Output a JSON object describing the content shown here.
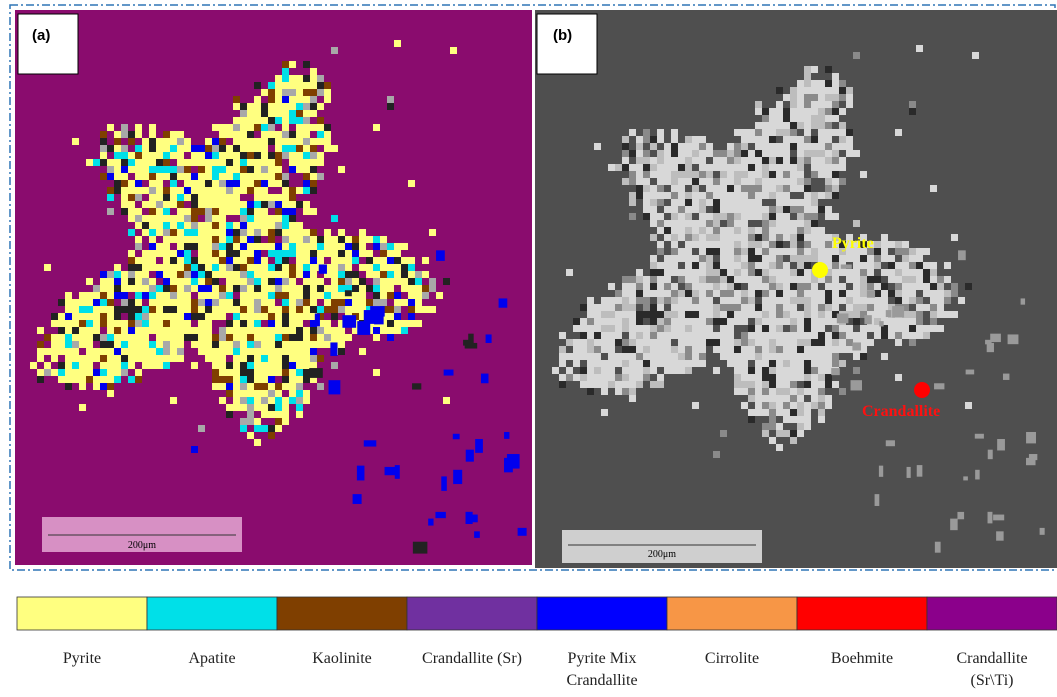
{
  "panels": [
    {
      "label": "(a)",
      "scale_bar": "200μm"
    },
    {
      "label": "(b)",
      "scale_bar": "200μm",
      "annotations": [
        "Pyrite",
        "Crandallite"
      ]
    }
  ],
  "legend": [
    {
      "name": "Pyrite",
      "color": "#ffff80"
    },
    {
      "name": "Apatite",
      "color": "#00e0e8"
    },
    {
      "name": "Kaolinite",
      "color": "#7f3f00"
    },
    {
      "name": "Crandallite (Sr)",
      "color": "#7030a0"
    },
    {
      "name": "Pyrite Mix Crandallite",
      "color": "#0000ff"
    },
    {
      "name": "Cirrolite",
      "color": "#f79646"
    },
    {
      "name": "Boehmite",
      "color": "#ff0000"
    },
    {
      "name": "Crandallite (Sr\\Ti)",
      "color": "#8b008b"
    }
  ]
}
